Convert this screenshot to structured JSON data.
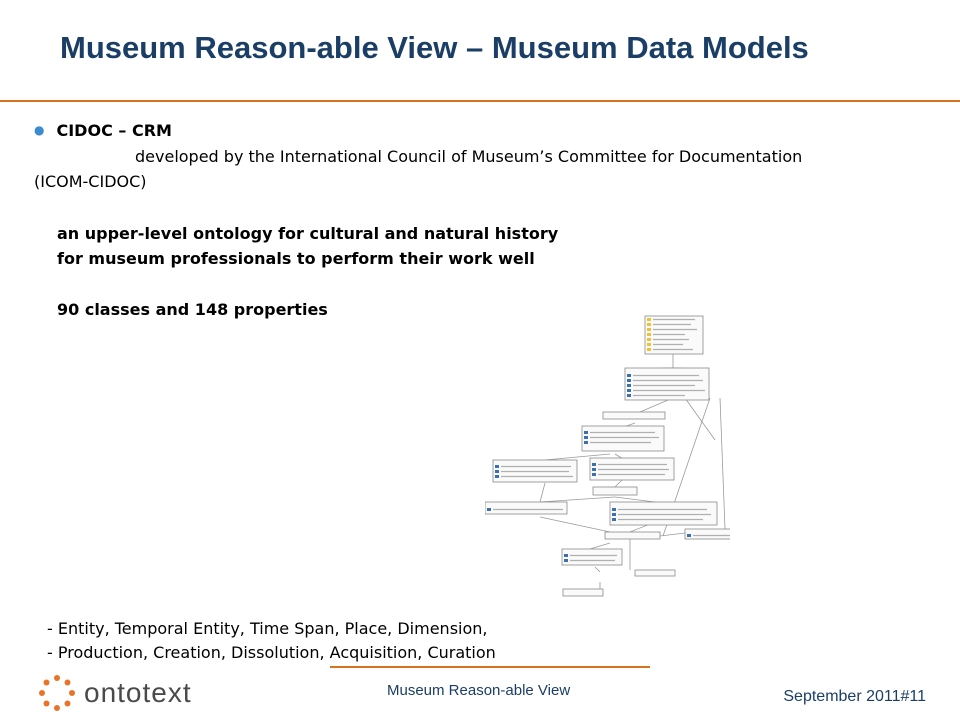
{
  "slide": {
    "title": "Museum Reason-able View – Museum Data Models",
    "bullet": "CIDOC – CRM",
    "description_line1": "developed by the International Council of Museum’s Committee for Documentation",
    "description_line2": "(ICOM-CIDOC)",
    "highlights": [
      "an upper-level ontology for cultural and natural history",
      "for museum professionals to perform their work well",
      "90 classes and 148 properties"
    ],
    "lists": [
      "- Entity, Temporal Entity, Time Span, Place, Dimension,",
      "- Production, Creation, Dissolution, Acquisition, Curation"
    ]
  },
  "footer": {
    "logo_text": "ontotext",
    "center": "Museum Reason-able View",
    "right": "September 2011#11"
  },
  "colors": {
    "title": "#1a3e66",
    "accent": "#d9731f",
    "bullet": "#3a8bd0"
  }
}
